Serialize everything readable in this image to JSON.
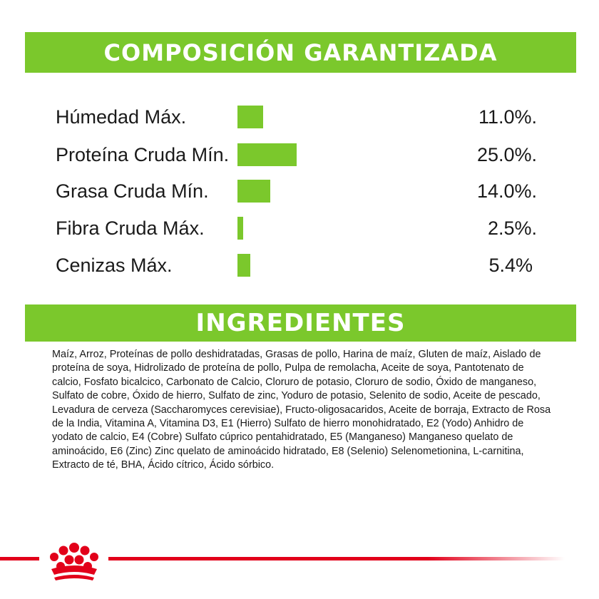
{
  "composition": {
    "title": "COMPOSICIÓN GARANTIZADA",
    "rows": [
      {
        "label": "Húmedad Máx.",
        "value": "11.0%.",
        "percent": 11.0
      },
      {
        "label": "Proteína Cruda Mín.",
        "value": "25.0%.",
        "percent": 25.0
      },
      {
        "label": "Grasa Cruda Mín.",
        "value": "14.0%.",
        "percent": 14.0
      },
      {
        "label": "Fibra Cruda Máx.",
        "value": "2.5%.",
        "percent": 2.5
      },
      {
        "label": "Cenizas Máx.",
        "value": "5.4%",
        "percent": 5.4
      }
    ]
  },
  "ingredients": {
    "title": "INGREDIENTES",
    "text": "Maíz, Arroz, Proteínas de pollo deshidratadas, Grasas  de pollo, Harina de maíz, Gluten de maíz, Aislado de proteína de soya, Hidrolizado de proteína de pollo, Pulpa de remolacha, Aceite de soya, Pantotenato de calcio, Fosfato bicalcico, Carbonato de Calcio, Cloruro de potasio, Cloruro de sodio, Óxido de manganeso, Sulfato de cobre, Óxido de hierro, Sulfato de zinc, Yoduro de potasio, Selenito de sodio, Aceite de pescado, Levadura de cerveza (Saccharomyces cerevisiae), Fructo-oligosacaridos, Aceite de borraja, Extracto de Rosa de la India, Vitamina A, Vitamina D3, E1 (Hierro) Sulfato de hierro monohidratado, E2 (Yodo) Anhidro de yodato de calcio, E4 (Cobre) Sulfato cúprico pentahidratado, E5 (Manganeso) Manganeso quelato de aminoácido, E6 (Zinc) Zinc quelato de aminoácido hidratado, E8 (Selenio) Selenometionina, L-carnitina, Extracto de té, BHA, Ácido cítrico, Ácido sórbico."
  },
  "colors": {
    "accent_green": "#7bc82c",
    "brand_red": "#e2001a"
  },
  "logo": {
    "name": "royal-canin-crown-icon"
  }
}
